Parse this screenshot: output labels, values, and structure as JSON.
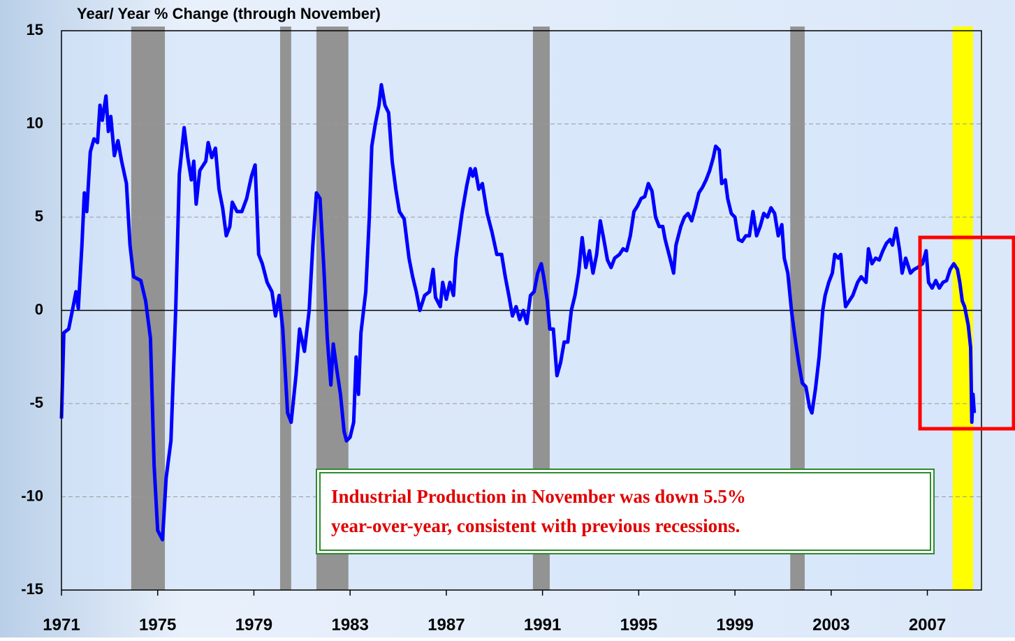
{
  "chart_data": {
    "type": "line",
    "title": "Year/ Year % Change (through November)",
    "annotation": [
      "Industrial Production in November was down 5.5%",
      "year-over-year, consistent with previous recessions."
    ],
    "color": "#0000ff",
    "grid": true,
    "xlim": [
      1971,
      2009.25
    ],
    "xticks": [
      1971,
      1975,
      1979,
      1983,
      1987,
      1991,
      1995,
      1999,
      2003,
      2007
    ],
    "ylim": [
      -15,
      15
    ],
    "yticks": [
      -15,
      -10,
      -5,
      0,
      5,
      10,
      15
    ],
    "shaded_periods": [
      {
        "start": 1973.9,
        "end": 1975.3,
        "color": "#939393"
      },
      {
        "start": 1980.09,
        "end": 1980.55,
        "color": "#939393"
      },
      {
        "start": 1981.6,
        "end": 1982.93,
        "color": "#939393"
      },
      {
        "start": 1990.6,
        "end": 1991.3,
        "color": "#939393"
      },
      {
        "start": 2001.3,
        "end": 2001.9,
        "color": "#939393"
      },
      {
        "start": 2008.05,
        "end": 2008.9,
        "color": "#ffff00"
      }
    ],
    "x": [
      1971.0,
      1971.1,
      1971.3,
      1971.5,
      1971.6,
      1971.7,
      1971.85,
      1971.95,
      1972.05,
      1972.2,
      1972.35,
      1972.5,
      1972.6,
      1972.7,
      1972.85,
      1972.95,
      1973.05,
      1973.2,
      1973.35,
      1973.5,
      1973.7,
      1973.85,
      1974.0,
      1974.3,
      1974.5,
      1974.7,
      1974.85,
      1975.0,
      1975.2,
      1975.35,
      1975.55,
      1975.75,
      1975.9,
      1976.1,
      1976.25,
      1976.4,
      1976.5,
      1976.6,
      1976.75,
      1977.0,
      1977.1,
      1977.25,
      1977.4,
      1977.55,
      1977.7,
      1977.85,
      1978.0,
      1978.1,
      1978.3,
      1978.5,
      1978.7,
      1978.9,
      1979.05,
      1979.2,
      1979.35,
      1979.55,
      1979.75,
      1979.9,
      1980.05,
      1980.2,
      1980.4,
      1980.55,
      1980.75,
      1980.9,
      1981.1,
      1981.3,
      1981.45,
      1981.6,
      1981.75,
      1981.9,
      1982.05,
      1982.2,
      1982.3,
      1982.45,
      1982.6,
      1982.75,
      1982.85,
      1983.0,
      1983.15,
      1983.25,
      1983.35,
      1983.45,
      1983.65,
      1983.8,
      1983.9,
      1984.05,
      1984.2,
      1984.3,
      1984.45,
      1984.6,
      1984.75,
      1984.9,
      1985.05,
      1985.25,
      1985.45,
      1985.6,
      1985.75,
      1985.9,
      1986.1,
      1986.3,
      1986.45,
      1986.55,
      1986.75,
      1986.85,
      1987.0,
      1987.15,
      1987.3,
      1987.4,
      1987.65,
      1987.85,
      1988.0,
      1988.1,
      1988.2,
      1988.35,
      1988.5,
      1988.7,
      1988.9,
      1989.1,
      1989.3,
      1989.45,
      1989.6,
      1989.75,
      1989.9,
      1990.05,
      1990.2,
      1990.35,
      1990.5,
      1990.65,
      1990.8,
      1990.95,
      1991.05,
      1991.2,
      1991.3,
      1991.45,
      1991.6,
      1991.75,
      1991.9,
      1992.05,
      1992.2,
      1992.35,
      1992.5,
      1992.65,
      1992.8,
      1992.95,
      1993.1,
      1993.25,
      1993.4,
      1993.55,
      1993.7,
      1993.85,
      1994.0,
      1994.2,
      1994.35,
      1994.5,
      1994.65,
      1994.8,
      1994.95,
      1995.1,
      1995.25,
      1995.4,
      1995.55,
      1995.7,
      1995.85,
      1996.0,
      1996.1,
      1996.3,
      1996.45,
      1996.55,
      1996.75,
      1996.9,
      1997.05,
      1997.2,
      1997.35,
      1997.5,
      1997.65,
      1997.8,
      1997.95,
      1998.1,
      1998.2,
      1998.35,
      1998.45,
      1998.6,
      1998.7,
      1998.85,
      1999.0,
      1999.15,
      1999.3,
      1999.45,
      1999.6,
      1999.75,
      1999.9,
      2000.05,
      2000.2,
      2000.35,
      2000.5,
      2000.65,
      2000.8,
      2000.95,
      2001.05,
      2001.2,
      2001.35,
      2001.5,
      2001.65,
      2001.8,
      2001.95,
      2002.1,
      2002.2,
      2002.35,
      2002.5,
      2002.65,
      2002.75,
      2002.9,
      2003.05,
      2003.15,
      2003.3,
      2003.4,
      2003.5,
      2003.6,
      2003.75,
      2003.9,
      2004.1,
      2004.25,
      2004.45,
      2004.55,
      2004.7,
      2004.85,
      2005.0,
      2005.15,
      2005.3,
      2005.45,
      2005.55,
      2005.7,
      2005.85,
      2005.95,
      2006.1,
      2006.3,
      2006.45,
      2006.6,
      2006.8,
      2006.95,
      2007.05,
      2007.2,
      2007.35,
      2007.5,
      2007.65,
      2007.8,
      2007.95,
      2008.1,
      2008.25,
      2008.35,
      2008.45,
      2008.55,
      2008.7,
      2008.8,
      2008.85,
      2008.9,
      2008.95
    ],
    "values": [
      -5.8,
      -1.2,
      -1.0,
      0.3,
      1.0,
      0.1,
      3.5,
      6.3,
      5.3,
      8.5,
      9.2,
      9.0,
      11.0,
      10.2,
      11.5,
      9.6,
      10.4,
      8.3,
      9.1,
      8.0,
      6.8,
      3.5,
      1.8,
      1.6,
      0.5,
      -1.5,
      -8.3,
      -11.8,
      -12.3,
      -9.0,
      -7.0,
      0.0,
      7.3,
      9.8,
      8.2,
      7.0,
      8.0,
      5.7,
      7.5,
      8.0,
      9.0,
      8.2,
      8.7,
      6.5,
      5.5,
      4.0,
      4.5,
      5.8,
      5.3,
      5.3,
      6.0,
      7.2,
      7.8,
      3.0,
      2.5,
      1.5,
      1.0,
      -0.3,
      0.8,
      -1.0,
      -5.5,
      -6.0,
      -3.5,
      -1.0,
      -2.2,
      0.0,
      3.5,
      6.3,
      6.0,
      2.5,
      -1.5,
      -4.0,
      -1.8,
      -3.2,
      -4.5,
      -6.5,
      -7.0,
      -6.8,
      -6.0,
      -2.5,
      -4.5,
      -1.2,
      1.0,
      5.0,
      8.8,
      10.0,
      11.0,
      12.1,
      11.0,
      10.6,
      8.0,
      6.5,
      5.3,
      4.9,
      2.8,
      1.8,
      1.0,
      0.0,
      0.8,
      1.0,
      2.2,
      0.7,
      0.2,
      1.5,
      0.6,
      1.5,
      0.8,
      2.8,
      5.2,
      6.7,
      7.6,
      7.2,
      7.6,
      6.5,
      6.8,
      5.2,
      4.2,
      3.0,
      3.0,
      1.8,
      0.8,
      -0.3,
      0.2,
      -0.5,
      0.0,
      -0.7,
      0.8,
      1.0,
      2.0,
      2.5,
      1.8,
      0.5,
      -1.0,
      -1.0,
      -3.5,
      -2.8,
      -1.7,
      -1.7,
      0.0,
      0.8,
      2.0,
      3.9,
      2.3,
      3.2,
      2.0,
      3.0,
      4.8,
      3.8,
      2.7,
      2.3,
      2.8,
      3.0,
      3.3,
      3.2,
      4.0,
      5.3,
      5.6,
      6.0,
      6.1,
      6.8,
      6.4,
      5.0,
      4.5,
      4.5,
      3.8,
      2.8,
      2.0,
      3.5,
      4.5,
      5.0,
      5.2,
      4.8,
      5.5,
      6.3,
      6.6,
      7.0,
      7.5,
      8.2,
      8.8,
      8.6,
      6.8,
      7.0,
      6.0,
      5.2,
      5.0,
      3.8,
      3.7,
      4.0,
      4.0,
      5.3,
      4.0,
      4.5,
      5.2,
      5.0,
      5.5,
      5.2,
      4.0,
      4.6,
      2.8,
      2.0,
      0.0,
      -1.5,
      -2.8,
      -3.9,
      -4.1,
      -5.2,
      -5.5,
      -4.2,
      -2.5,
      0.0,
      0.8,
      1.5,
      2.0,
      3.0,
      2.8,
      3.0,
      1.5,
      0.2,
      0.5,
      0.8,
      1.5,
      1.8,
      1.5,
      3.3,
      2.5,
      2.8,
      2.7,
      3.2,
      3.6,
      3.8,
      3.5,
      4.4,
      3.2,
      2.0,
      2.8,
      2.0,
      2.2,
      2.3,
      2.5,
      3.2,
      1.5,
      1.2,
      1.6,
      1.2,
      1.5,
      1.6,
      2.2,
      2.5,
      2.2,
      1.5,
      0.5,
      0.2,
      -0.8,
      -2.0,
      -6.0,
      -4.5,
      -5.5
    ]
  }
}
